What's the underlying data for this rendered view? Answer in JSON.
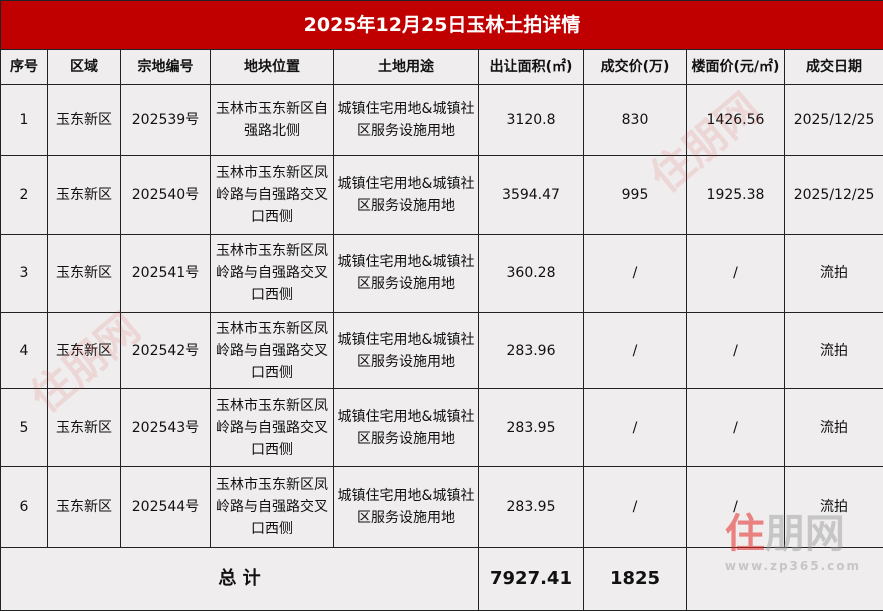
{
  "title": "2025年12月25日玉林土拍详情",
  "headers": [
    "序号",
    "区域",
    "宗地编号",
    "地块位置",
    "土地用途",
    "出让面积(㎡)",
    "成交价(万)",
    "楼面价(元/㎡)",
    "成交日期"
  ],
  "rows": [
    {
      "no": "1",
      "area": "玉东新区",
      "parcel": "202539号",
      "location": "玉林市玉东新区自强路北侧",
      "use": "城镇住宅用地&城镇社区服务设施用地",
      "size": "3120.8",
      "price": "830",
      "unit_price": "1426.56",
      "date": "2025/12/25"
    },
    {
      "no": "2",
      "area": "玉东新区",
      "parcel": "202540号",
      "location": "玉林市玉东新区凤岭路与自强路交叉口西侧",
      "use": "城镇住宅用地&城镇社区服务设施用地",
      "size": "3594.47",
      "price": "995",
      "unit_price": "1925.38",
      "date": "2025/12/25"
    },
    {
      "no": "3",
      "area": "玉东新区",
      "parcel": "202541号",
      "location": "玉林市玉东新区凤岭路与自强路交叉口西侧",
      "use": "城镇住宅用地&城镇社区服务设施用地",
      "size": "360.28",
      "price": "/",
      "unit_price": "/",
      "date": "流拍"
    },
    {
      "no": "4",
      "area": "玉东新区",
      "parcel": "202542号",
      "location": "玉林市玉东新区凤岭路与自强路交叉口西侧",
      "use": "城镇住宅用地&城镇社区服务设施用地",
      "size": "283.96",
      "price": "/",
      "unit_price": "/",
      "date": "流拍"
    },
    {
      "no": "5",
      "area": "玉东新区",
      "parcel": "202543号",
      "location": "玉林市玉东新区凤岭路与自强路交叉口西侧",
      "use": "城镇住宅用地&城镇社区服务设施用地",
      "size": "283.95",
      "price": "/",
      "unit_price": "/",
      "date": "流拍"
    },
    {
      "no": "6",
      "area": "玉东新区",
      "parcel": "202544号",
      "location": "玉林市玉东新区凤岭路与自强路交叉口西侧",
      "use": "城镇住宅用地&城镇社区服务设施用地",
      "size": "283.95",
      "price": "/",
      "unit_price": "/",
      "date": "流拍"
    }
  ],
  "total": {
    "label": "总 计",
    "size": "7927.41",
    "price": "1825"
  },
  "watermark": {
    "logo": "住朋网",
    "url": "www.zp365.com"
  },
  "colors": {
    "title_bg": "#c00000",
    "table_bg": "#efeded"
  }
}
